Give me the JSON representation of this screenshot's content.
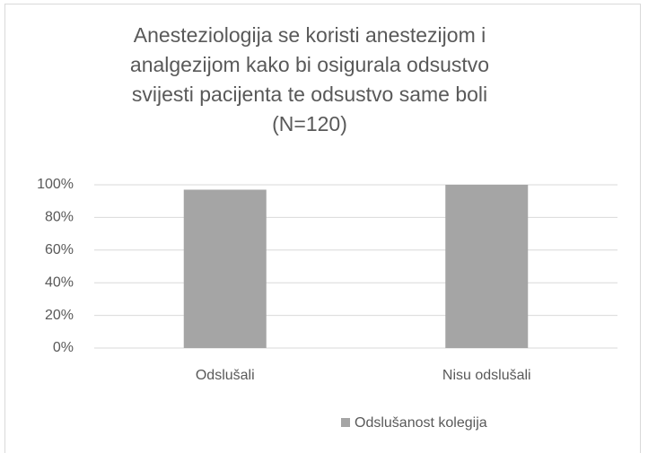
{
  "chart_data": {
    "type": "bar",
    "title": [
      "Anesteziologija se koristi anestezijom i",
      "analgezijom kako bi osigurala odsustvo",
      "svijesti pacijenta te odsustvo same boli",
      "(N=120)"
    ],
    "categories": [
      "Odslušali",
      "Nisu odslušali"
    ],
    "series": [
      {
        "name": "Odslušanost kolegija",
        "color": "#a5a5a5",
        "values": [
          97,
          100
        ]
      }
    ],
    "ylim": [
      0,
      100
    ],
    "yticks": [
      {
        "value": 0,
        "label": "0%"
      },
      {
        "value": 20,
        "label": "20%"
      },
      {
        "value": 40,
        "label": "40%"
      },
      {
        "value": 60,
        "label": "60%"
      },
      {
        "value": 80,
        "label": "80%"
      },
      {
        "value": 100,
        "label": "100%"
      }
    ],
    "grid": true,
    "legend": "bottom"
  }
}
